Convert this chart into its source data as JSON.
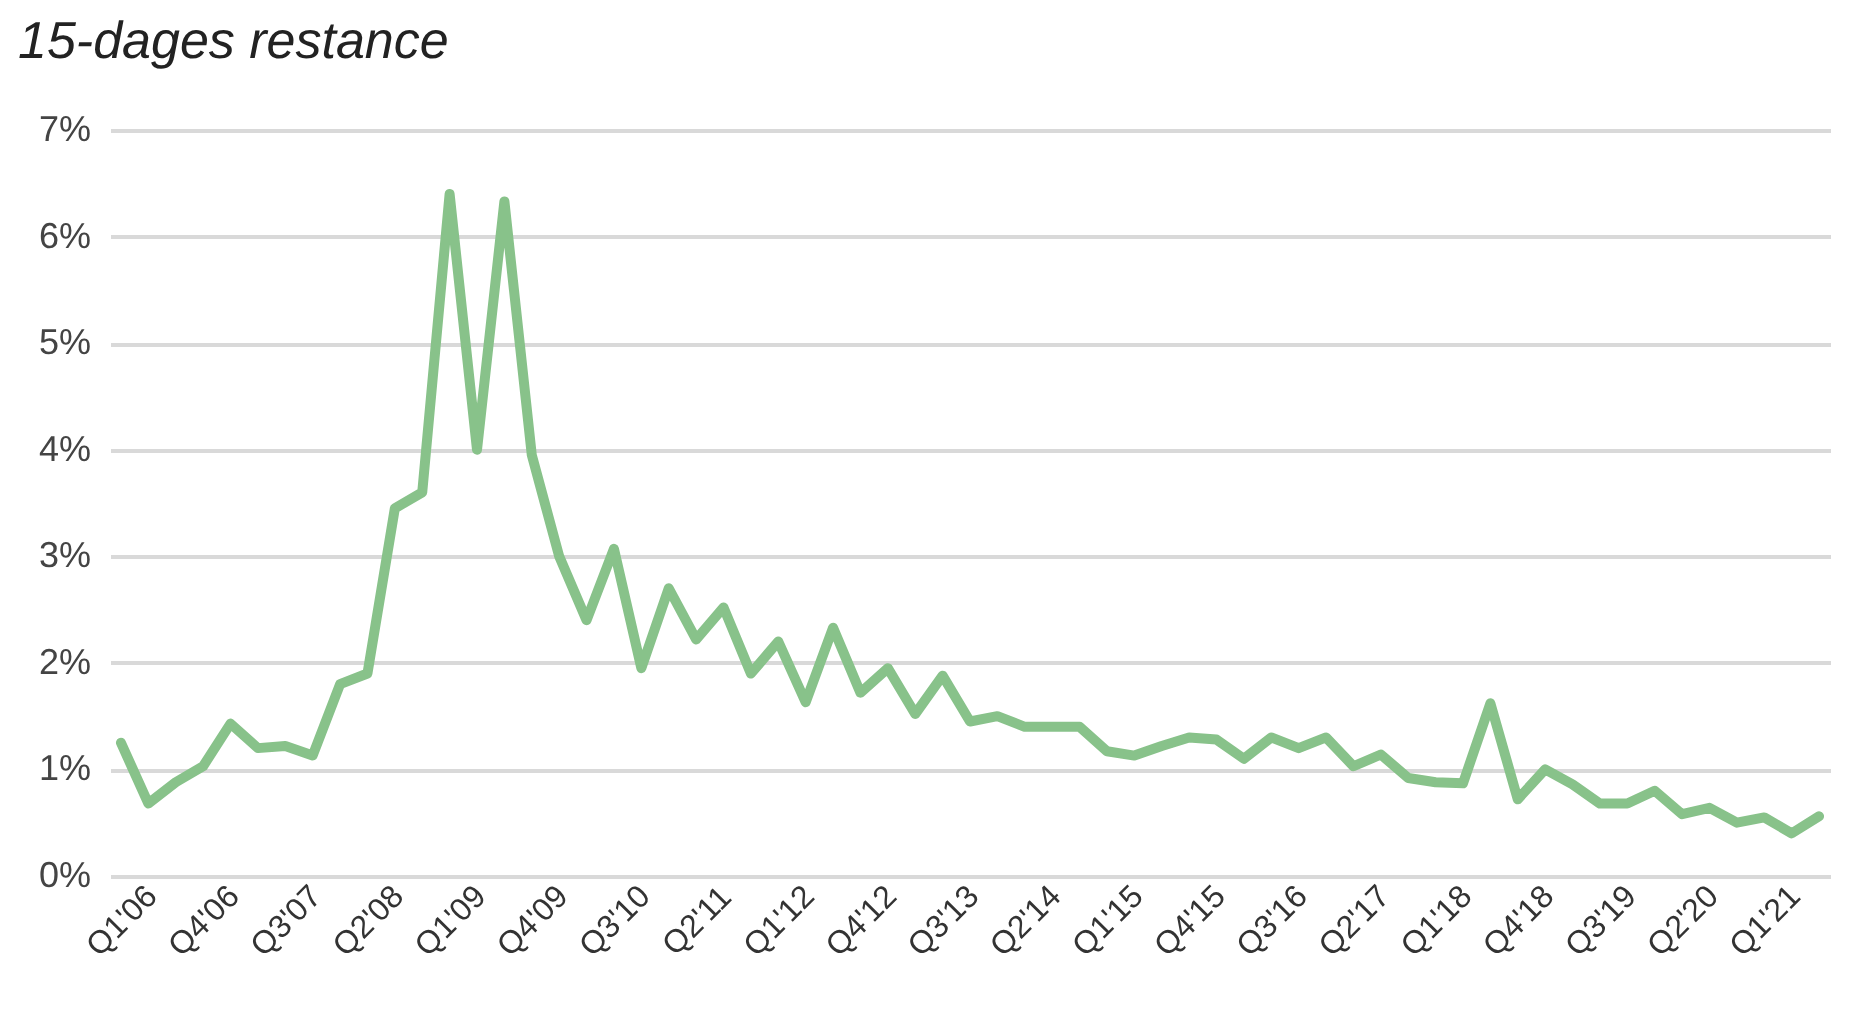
{
  "chart_data": {
    "type": "line",
    "title": "15-dages restance",
    "categories": [
      "Q1'06",
      null,
      null,
      "Q4'06",
      null,
      null,
      "Q3'07",
      null,
      null,
      "Q2'08",
      null,
      null,
      "Q1'09",
      null,
      null,
      "Q4'09",
      null,
      null,
      "Q3'10",
      null,
      null,
      "Q2'11",
      null,
      null,
      "Q1'12",
      null,
      null,
      "Q4'12",
      null,
      null,
      "Q3'13",
      null,
      null,
      "Q2'14",
      null,
      null,
      "Q1'15",
      null,
      null,
      "Q4'15",
      null,
      null,
      "Q3'16",
      null,
      null,
      "Q2'17",
      null,
      null,
      "Q1'18",
      null,
      null,
      "Q4'18",
      null,
      null,
      "Q3'19",
      null,
      null,
      "Q2'20",
      null,
      null,
      "Q1'21",
      null,
      null
    ],
    "series": [
      {
        "color": "#88c28a",
        "values": [
          1.25,
          0.68,
          0.88,
          1.03,
          1.43,
          1.2,
          1.22,
          1.13,
          1.8,
          1.9,
          3.45,
          3.6,
          6.4,
          4.0,
          6.33,
          3.95,
          3.0,
          2.4,
          3.07,
          1.95,
          2.7,
          2.22,
          2.52,
          1.9,
          2.2,
          1.63,
          2.33,
          1.72,
          1.95,
          1.52,
          1.88,
          1.45,
          1.5,
          1.4,
          1.4,
          1.4,
          1.17,
          1.13,
          1.22,
          1.3,
          1.28,
          1.1,
          1.3,
          1.2,
          1.3,
          1.03,
          1.14,
          0.92,
          0.88,
          0.87,
          1.62,
          0.72,
          1.0,
          0.86,
          0.68,
          0.68,
          0.8,
          0.58,
          0.64,
          0.5,
          0.55,
          0.4,
          0.56
        ]
      }
    ],
    "ylim": [
      0,
      7
    ],
    "yticks": [
      {
        "value": 0,
        "label": "0%"
      },
      {
        "value": 1,
        "label": "1%"
      },
      {
        "value": 2,
        "label": "2%"
      },
      {
        "value": 3,
        "label": "3%"
      },
      {
        "value": 4,
        "label": "4%"
      },
      {
        "value": 5,
        "label": "5%"
      },
      {
        "value": 6,
        "label": "6%"
      },
      {
        "value": 7,
        "label": "7%"
      }
    ],
    "grid": "y",
    "marker": "none",
    "line_style": "solid",
    "legend": false
  }
}
